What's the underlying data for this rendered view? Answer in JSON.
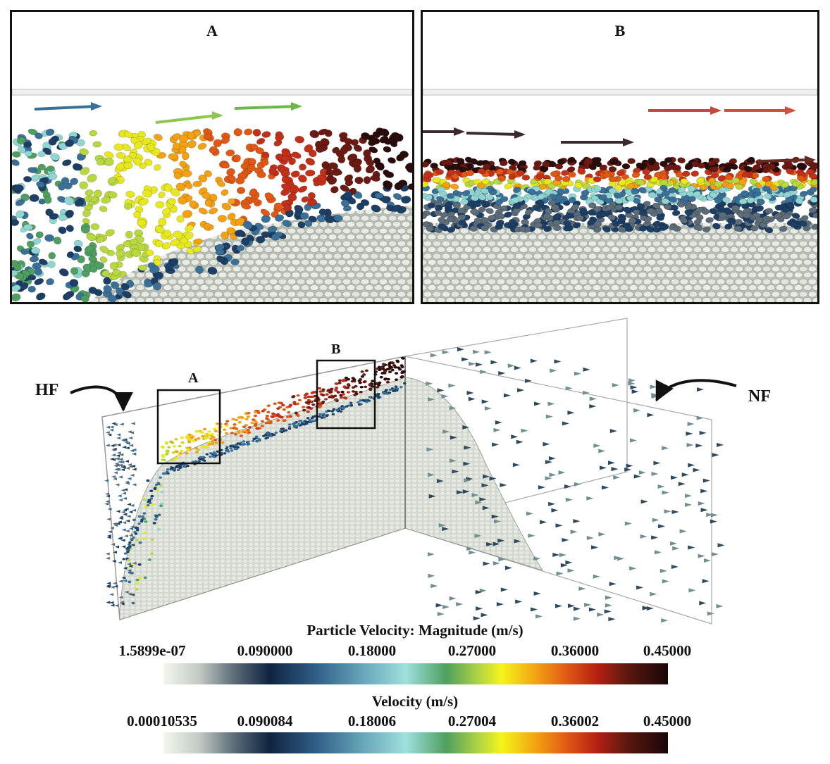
{
  "panels": {
    "a_title": "A",
    "b_title": "B"
  },
  "scene": {
    "label_hf": "HF",
    "label_nf": "NF",
    "box_a_label": "A",
    "box_b_label": "B"
  },
  "legend_particle": {
    "title": "Particle Velocity: Magnitude (m/s)",
    "ticks": [
      "1.5899e-07",
      "0.090000",
      "0.18000",
      "0.27000",
      "0.36000",
      "0.45000"
    ]
  },
  "legend_velocity": {
    "title": "Velocity (m/s)",
    "ticks": [
      "0.00010535",
      "0.090084",
      "0.18006",
      "0.27004",
      "0.36002",
      "0.45000"
    ]
  },
  "colors": {
    "slow": "#1d3f66",
    "mid": "#8fd6d2",
    "medium_high": "#e8e81e",
    "high": "#c2301a",
    "max": "#2a0c0c",
    "bed": "#dfe3da"
  }
}
